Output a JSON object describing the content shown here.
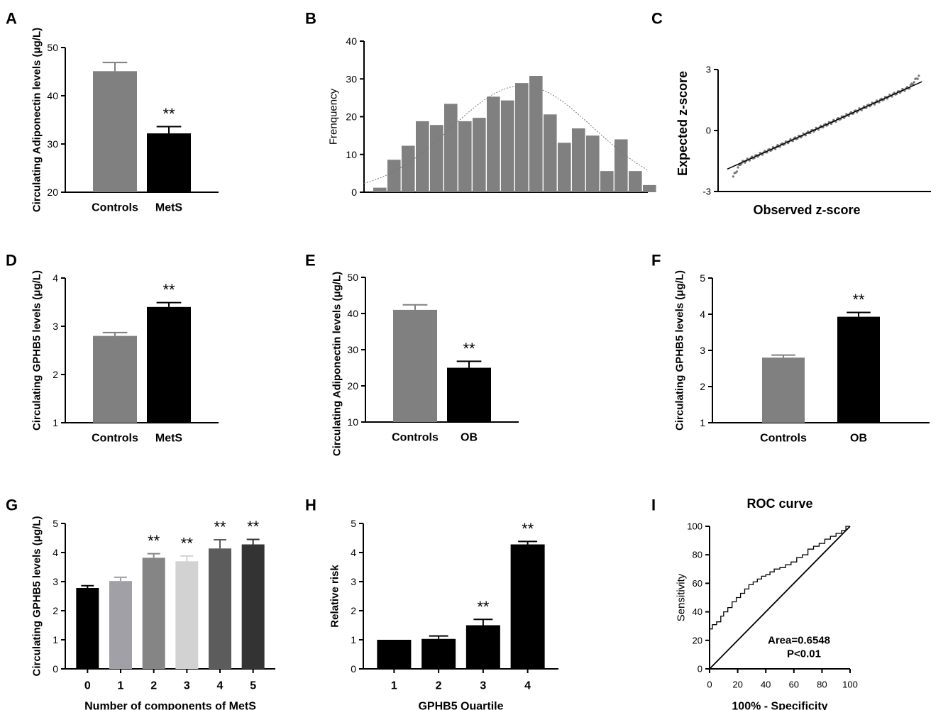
{
  "chart_data": [
    {
      "id": "A",
      "panel_label": "A",
      "type": "bar",
      "categories": [
        "Controls",
        "MetS"
      ],
      "values": [
        45.1,
        32.2
      ],
      "errors": [
        1.8,
        1.4
      ],
      "colors": [
        "#808080",
        "#000000"
      ],
      "significance": [
        "",
        "**"
      ],
      "ylabel": "Circulating Adiponectin levels (μg/L)",
      "ylim": [
        20,
        50
      ],
      "yticks": [
        20,
        30,
        40,
        50
      ]
    },
    {
      "id": "B",
      "panel_label": "B",
      "type": "histogram",
      "values": [
        1.2,
        8.6,
        12.3,
        18.8,
        17.8,
        23.4,
        18.8,
        19.7,
        25.3,
        24.3,
        28.9,
        30.8,
        20.6,
        13.1,
        16.9,
        15.0,
        5.6,
        14.0,
        5.6,
        1.9
      ],
      "ylabel": "Frenquency",
      "ylim": [
        0,
        40
      ],
      "yticks": [
        0,
        10,
        20,
        30,
        40
      ],
      "normal_curve": {
        "peak": 28.2,
        "peak_bin": 10.5,
        "sd_bins": 5.0
      }
    },
    {
      "id": "C",
      "panel_label": "C",
      "type": "scatter",
      "xlabel": "Observed z-score",
      "ylabel": "Expected z-score",
      "ylim": [
        -3,
        3
      ],
      "yticks": [
        -3,
        0,
        3
      ],
      "ytick_labels": [
        "-3",
        "0",
        "3"
      ],
      "xlim": [
        -3.5,
        3.5
      ],
      "fit_line": {
        "x": [
          -3.2,
          3.2
        ],
        "y": [
          -1.9,
          2.4
        ]
      }
    },
    {
      "id": "D",
      "panel_label": "D",
      "type": "bar",
      "categories": [
        "Controls",
        "MetS"
      ],
      "values": [
        2.8,
        3.4
      ],
      "errors": [
        0.07,
        0.09
      ],
      "colors": [
        "#808080",
        "#000000"
      ],
      "significance": [
        "",
        "**"
      ],
      "ylabel": "Circulating GPHB5 levels (μg/L)",
      "ylim": [
        1,
        4
      ],
      "yticks": [
        1,
        2,
        3,
        4
      ]
    },
    {
      "id": "E",
      "panel_label": "E",
      "type": "bar",
      "categories": [
        "Controls",
        "OB"
      ],
      "values": [
        41.0,
        25.0
      ],
      "errors": [
        1.4,
        1.8
      ],
      "colors": [
        "#808080",
        "#000000"
      ],
      "significance": [
        "",
        "**"
      ],
      "ylabel": "Circulating Adiponectin levels (μg/L)",
      "ylim": [
        10,
        50
      ],
      "yticks": [
        10,
        20,
        30,
        40,
        50
      ]
    },
    {
      "id": "F",
      "panel_label": "F",
      "type": "bar",
      "categories": [
        "Controls",
        "OB"
      ],
      "values": [
        2.8,
        3.93
      ],
      "errors": [
        0.07,
        0.12
      ],
      "colors": [
        "#808080",
        "#000000"
      ],
      "significance": [
        "",
        "**"
      ],
      "ylabel": "Circulating GPHB5 levels (μg/L)",
      "ylim": [
        1,
        5
      ],
      "yticks": [
        1,
        2,
        3,
        4,
        5
      ]
    },
    {
      "id": "G",
      "panel_label": "G",
      "type": "bar",
      "categories": [
        "0",
        "1",
        "2",
        "3",
        "4",
        "5"
      ],
      "values": [
        2.78,
        3.02,
        3.82,
        3.7,
        4.14,
        4.28
      ],
      "errors": [
        0.08,
        0.13,
        0.14,
        0.18,
        0.3,
        0.17
      ],
      "colors": [
        "#000000",
        "#a0a0a6",
        "#858585",
        "#d2d2d2",
        "#5c5c5c",
        "#333333"
      ],
      "significance": [
        "",
        "",
        "**",
        "**",
        "**",
        "**"
      ],
      "xlabel": "Number of components of MetS",
      "ylabel": "Circulating GPHB5 levels (μg/L)",
      "ylim": [
        0,
        5
      ],
      "yticks": [
        0,
        1,
        2,
        3,
        4,
        5
      ]
    },
    {
      "id": "H",
      "panel_label": "H",
      "type": "bar",
      "categories": [
        "1",
        "2",
        "3",
        "4"
      ],
      "values": [
        1.0,
        1.03,
        1.5,
        4.28
      ],
      "errors": [
        0.0,
        0.1,
        0.2,
        0.1
      ],
      "colors": [
        "#000000",
        "#000000",
        "#000000",
        "#000000"
      ],
      "significance": [
        "",
        "",
        "**",
        "**"
      ],
      "xlabel": "GPHB5 Quartile",
      "ylabel": "Relative risk",
      "ylim": [
        0,
        5
      ],
      "yticks": [
        0,
        1,
        2,
        3,
        4,
        5
      ]
    },
    {
      "id": "I",
      "panel_label": "I",
      "type": "line",
      "title": "ROC curve",
      "xlabel": "100% - Specificity",
      "ylabel": "Sensitivity",
      "xlim": [
        0,
        100
      ],
      "ylim": [
        0,
        100
      ],
      "xticks": [
        0,
        20,
        40,
        60,
        80,
        100
      ],
      "yticks": [
        0,
        20,
        40,
        60,
        80,
        100
      ],
      "roc": {
        "x": [
          0,
          0,
          2,
          5,
          8,
          10,
          13,
          16,
          19,
          22,
          25,
          28,
          31,
          34,
          37,
          40,
          43,
          46,
          50,
          54,
          58,
          62,
          66,
          70,
          74,
          78,
          82,
          86,
          90,
          94,
          97,
          100
        ],
        "y": [
          0,
          26,
          28,
          31,
          33,
          37,
          40,
          43,
          47,
          50,
          53,
          56,
          59,
          61,
          63,
          65,
          66,
          68,
          70,
          71,
          73,
          75,
          78,
          80,
          84,
          86,
          88,
          91,
          93,
          95,
          97,
          100
        ]
      },
      "annotations": [
        "Area=0.6548",
        "P<0.01"
      ]
    }
  ]
}
